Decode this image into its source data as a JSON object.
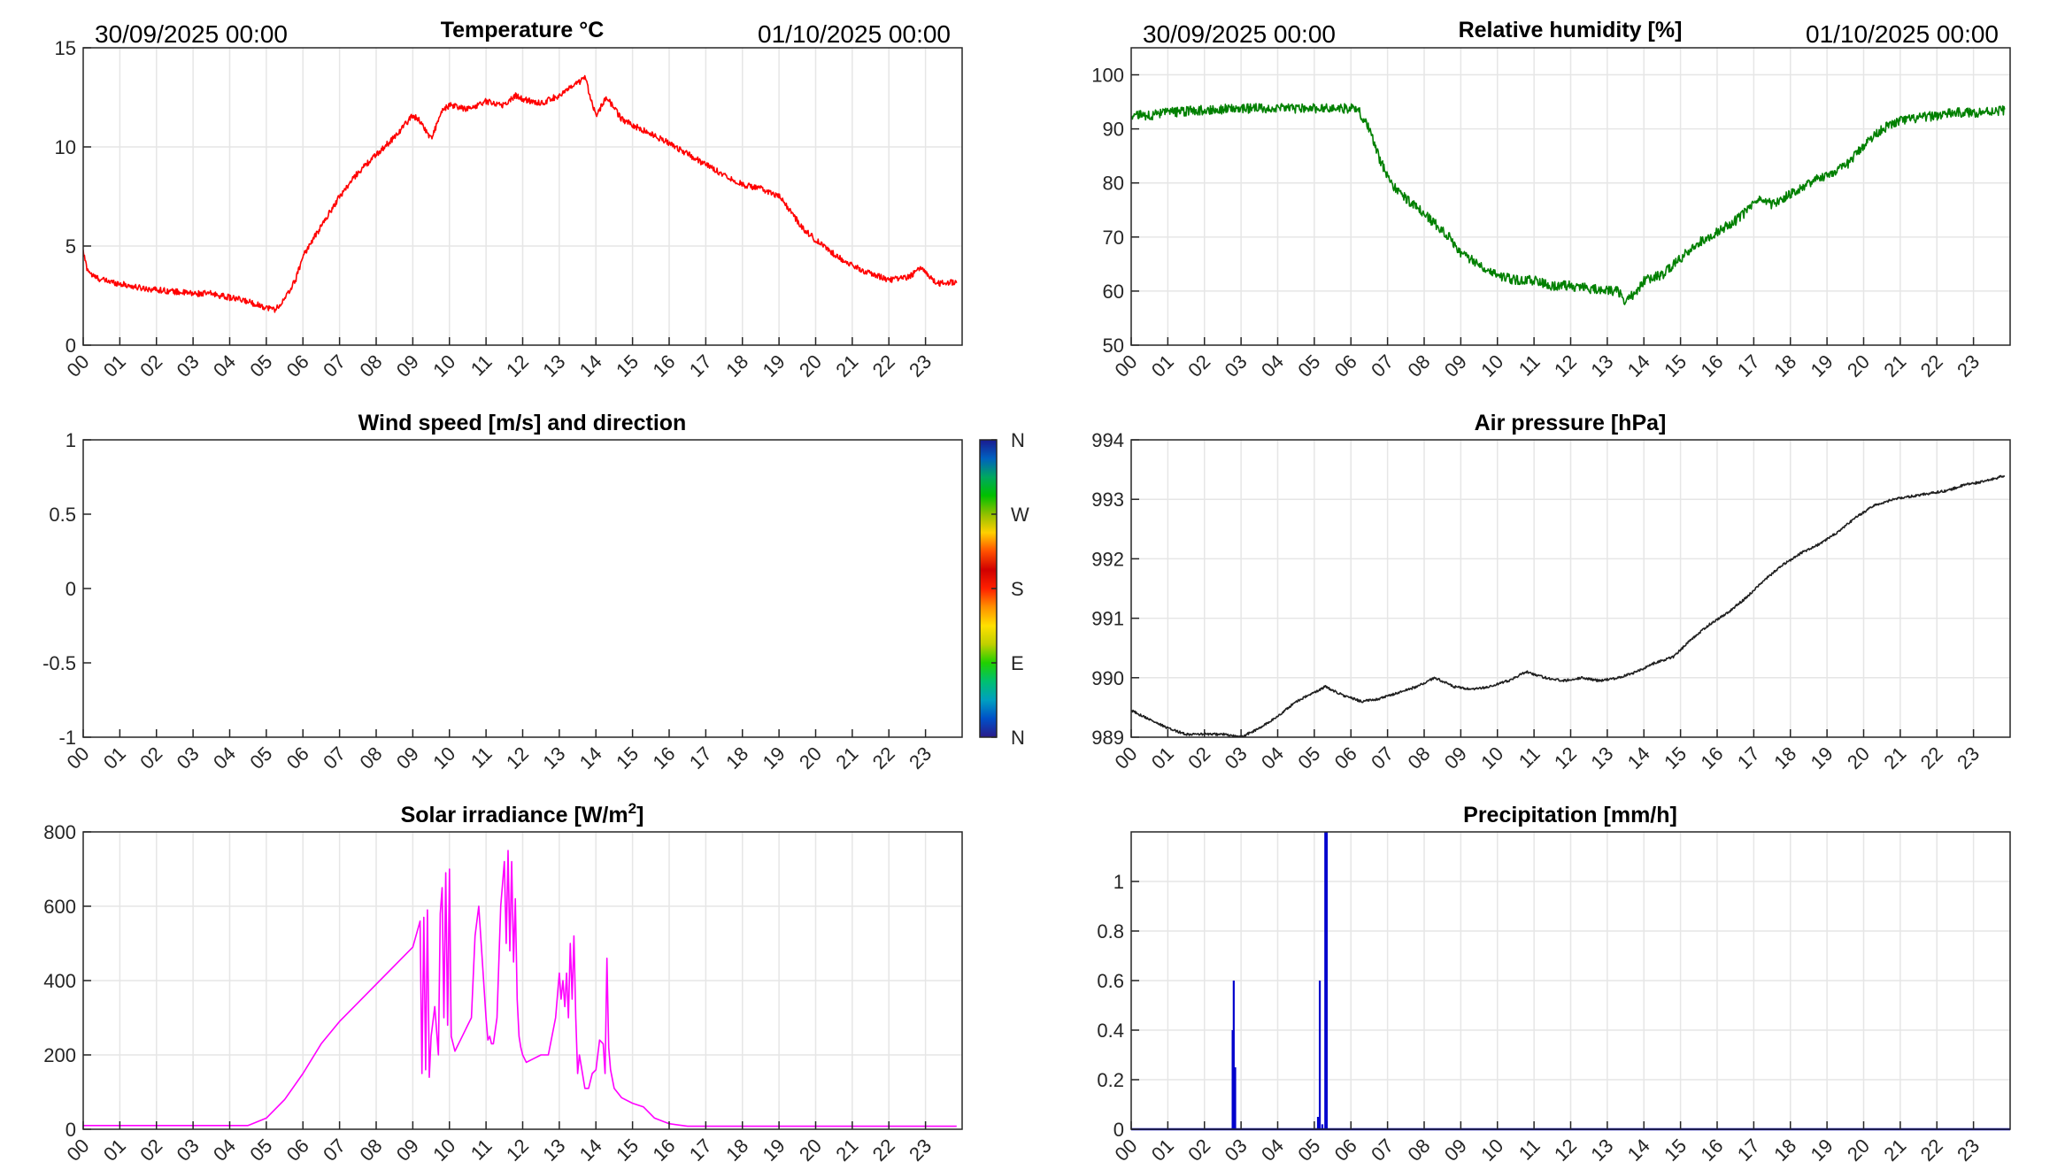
{
  "charts": [
    {
      "type": "line",
      "title": "Temperature °C",
      "start_label": "30/09/2025 00:00",
      "end_label": "01/10/2025 00:00",
      "x_tick_labels": [
        "00",
        "01",
        "02",
        "03",
        "04",
        "05",
        "06",
        "07",
        "08",
        "09",
        "10",
        "11",
        "12",
        "13",
        "14",
        "15",
        "16",
        "17",
        "18",
        "19",
        "20",
        "21",
        "22",
        "23"
      ],
      "xlim": [
        0,
        24
      ],
      "ylim": [
        0,
        15
      ],
      "y_ticks": [
        0,
        5,
        10,
        15
      ],
      "y_tick_labels": [
        "0",
        "5",
        "10",
        "15"
      ],
      "grid": true,
      "series": [
        {
          "color": "#ff0000",
          "noise": 0.15,
          "x": [
            0,
            0.1,
            0.25,
            0.5,
            1,
            1.5,
            2,
            2.5,
            3,
            3.5,
            4,
            4.5,
            5,
            5.25,
            5.5,
            5.8,
            6,
            6.5,
            7,
            7.5,
            8,
            8.5,
            9,
            9.2,
            9.5,
            9.8,
            10,
            10.5,
            11,
            11.5,
            11.8,
            12,
            12.5,
            13,
            13.5,
            13.7,
            14,
            14.3,
            14.7,
            15,
            16,
            17,
            18,
            18.5,
            19,
            19.3,
            19.6,
            20,
            20.5,
            21,
            21.5,
            22,
            22.5,
            22.9,
            23.3,
            23.85
          ],
          "y": [
            4.7,
            3.9,
            3.5,
            3.3,
            3.1,
            2.9,
            2.8,
            2.7,
            2.6,
            2.6,
            2.4,
            2.2,
            1.9,
            1.8,
            2.3,
            3.3,
            4.5,
            6.0,
            7.5,
            8.7,
            9.6,
            10.5,
            11.6,
            11.3,
            10.4,
            11.8,
            12.1,
            11.9,
            12.3,
            12.1,
            12.6,
            12.4,
            12.2,
            12.6,
            13.2,
            13.5,
            11.6,
            12.5,
            11.4,
            11.1,
            10.2,
            9.1,
            8.1,
            7.9,
            7.5,
            6.8,
            6.0,
            5.3,
            4.6,
            4.0,
            3.6,
            3.3,
            3.4,
            3.9,
            3.1,
            3.2
          ]
        }
      ],
      "annotations": []
    },
    {
      "type": "line",
      "title": "Relative humidity [%]",
      "start_label": "30/09/2025 00:00",
      "end_label": "01/10/2025 00:00",
      "x_tick_labels": [
        "00",
        "01",
        "02",
        "03",
        "04",
        "05",
        "06",
        "07",
        "08",
        "09",
        "10",
        "11",
        "12",
        "13",
        "14",
        "15",
        "16",
        "17",
        "18",
        "19",
        "20",
        "21",
        "22",
        "23"
      ],
      "xlim": [
        0,
        24
      ],
      "ylim": [
        50,
        105
      ],
      "y_ticks": [
        50,
        60,
        70,
        80,
        90,
        100
      ],
      "y_tick_labels": [
        "50",
        "60",
        "70",
        "80",
        "90",
        "100"
      ],
      "grid": true,
      "series": [
        {
          "color": "#008000",
          "noise": 0.9,
          "x": [
            0,
            0.5,
            1,
            2,
            3,
            4,
            5,
            6,
            6.2,
            6.5,
            6.8,
            7.2,
            7.7,
            8.2,
            8.7,
            9,
            9.5,
            10,
            10.5,
            11,
            11.5,
            12,
            12.5,
            13,
            13.3,
            13.5,
            13.8,
            14,
            14.5,
            15,
            15.5,
            16,
            16.5,
            17,
            17.2,
            17.5,
            18,
            18.5,
            19,
            19.5,
            20,
            20.5,
            21,
            21.5,
            22,
            22.5,
            23,
            23.85
          ],
          "y": [
            92.5,
            92.5,
            93,
            93.5,
            93.8,
            93.8,
            93.8,
            93.8,
            93.5,
            90,
            84,
            79,
            76,
            73,
            70,
            67,
            65,
            63,
            62,
            62,
            61,
            61,
            60.5,
            60,
            60,
            58,
            60,
            62,
            63,
            66,
            69,
            71,
            73,
            76,
            77,
            76,
            78,
            80,
            81.5,
            83,
            87,
            90,
            91.5,
            92,
            92.5,
            93,
            93,
            93.5
          ]
        }
      ],
      "annotations": []
    },
    {
      "type": "line",
      "title": "Wind speed [m/s] and direction",
      "start_label": "",
      "end_label": "",
      "x_tick_labels": [
        "00",
        "01",
        "02",
        "03",
        "04",
        "05",
        "06",
        "07",
        "08",
        "09",
        "10",
        "11",
        "12",
        "13",
        "14",
        "15",
        "16",
        "17",
        "18",
        "19",
        "20",
        "21",
        "22",
        "23"
      ],
      "xlim": [
        0,
        24
      ],
      "ylim": [
        -1,
        1
      ],
      "y_ticks": [
        -1,
        -0.5,
        0,
        0.5,
        1
      ],
      "y_tick_labels": [
        "-1",
        "-0.5",
        "0",
        "0.5",
        "1"
      ],
      "grid": false,
      "series": [],
      "colorbar": {
        "labels": [
          "N",
          "W",
          "S",
          "E",
          "N"
        ],
        "colors": [
          "#2a1a8a",
          "#0050c8",
          "#00a0c0",
          "#00c070",
          "#20d000",
          "#c0d000",
          "#ffe000",
          "#ff9000",
          "#ff2000",
          "#d00000",
          "#ff5000",
          "#ffd000",
          "#90c000",
          "#00c000",
          "#00a860",
          "#0060c0",
          "#1a1a90"
        ]
      },
      "annotations": []
    },
    {
      "type": "line",
      "title": "Air pressure [hPa]",
      "start_label": "",
      "end_label": "",
      "x_tick_labels": [
        "00",
        "01",
        "02",
        "03",
        "04",
        "05",
        "06",
        "07",
        "08",
        "09",
        "10",
        "11",
        "12",
        "13",
        "14",
        "15",
        "16",
        "17",
        "18",
        "19",
        "20",
        "21",
        "22",
        "23"
      ],
      "xlim": [
        0,
        24
      ],
      "ylim": [
        989,
        994
      ],
      "y_ticks": [
        989,
        990,
        991,
        992,
        993,
        994
      ],
      "y_tick_labels": [
        "989",
        "990",
        "991",
        "992",
        "993",
        "994"
      ],
      "grid": true,
      "series": [
        {
          "color": "#202020",
          "noise": 0.02,
          "x": [
            0,
            0.5,
            1,
            1.5,
            2,
            2.5,
            3,
            3.5,
            4,
            4.5,
            5,
            5.3,
            5.8,
            6.3,
            6.8,
            7.3,
            7.8,
            8.3,
            8.8,
            9.3,
            9.8,
            10.3,
            10.8,
            11.3,
            11.8,
            12.3,
            12.8,
            13.3,
            13.8,
            14.3,
            14.8,
            15.3,
            15.8,
            16.3,
            16.8,
            17.3,
            17.8,
            18.3,
            18.8,
            19.3,
            19.8,
            20.3,
            20.8,
            21.3,
            21.8,
            22.3,
            22.8,
            23.3,
            23.85
          ],
          "y": [
            989.45,
            989.3,
            989.15,
            989.05,
            989.05,
            989.05,
            989.0,
            989.15,
            989.35,
            989.6,
            989.75,
            989.85,
            989.7,
            989.6,
            989.65,
            989.75,
            989.85,
            990.0,
            989.85,
            989.8,
            989.85,
            989.95,
            990.1,
            990.0,
            989.95,
            990.0,
            989.95,
            990.0,
            990.1,
            990.25,
            990.35,
            990.65,
            990.9,
            991.1,
            991.35,
            991.65,
            991.9,
            992.1,
            992.25,
            992.45,
            992.7,
            992.9,
            993.0,
            993.05,
            993.1,
            993.15,
            993.25,
            993.3,
            993.4
          ]
        }
      ],
      "annotations": []
    },
    {
      "type": "line",
      "title": "Solar irradiance [W/m",
      "title_sup": "2",
      "title_suffix": "]",
      "start_label": "",
      "end_label": "",
      "x_tick_labels": [
        "00",
        "01",
        "02",
        "03",
        "04",
        "05",
        "06",
        "07",
        "08",
        "09",
        "10",
        "11",
        "12",
        "13",
        "14",
        "15",
        "16",
        "17",
        "18",
        "19",
        "20",
        "21",
        "22",
        "23"
      ],
      "xlim": [
        0,
        24
      ],
      "ylim": [
        0,
        800
      ],
      "y_ticks": [
        0,
        200,
        400,
        600,
        800
      ],
      "y_tick_labels": [
        "0",
        "200",
        "400",
        "600",
        "800"
      ],
      "grid": true,
      "series": [
        {
          "color": "#ff00ff",
          "noise": 0,
          "x": [
            0,
            4.5,
            5,
            5.5,
            6,
            6.5,
            7,
            7.5,
            8,
            8.5,
            9,
            9.2,
            9.25,
            9.3,
            9.35,
            9.4,
            9.45,
            9.5,
            9.6,
            9.7,
            9.75,
            9.8,
            9.85,
            9.9,
            9.95,
            10.0,
            10.05,
            10.1,
            10.15,
            10.2,
            10.3,
            10.4,
            10.5,
            10.6,
            10.7,
            10.8,
            10.9,
            11.0,
            11.05,
            11.1,
            11.15,
            11.2,
            11.3,
            11.4,
            11.5,
            11.55,
            11.6,
            11.65,
            11.7,
            11.75,
            11.8,
            11.85,
            11.9,
            11.95,
            12.0,
            12.1,
            12.3,
            12.5,
            12.7,
            12.9,
            13.0,
            13.05,
            13.1,
            13.15,
            13.2,
            13.25,
            13.3,
            13.35,
            13.4,
            13.45,
            13.5,
            13.55,
            13.6,
            13.7,
            13.8,
            13.9,
            14.0,
            14.1,
            14.2,
            14.25,
            14.3,
            14.35,
            14.4,
            14.5,
            14.7,
            15.0,
            15.3,
            15.6,
            16.0,
            16.5,
            17,
            23.85
          ],
          "y": [
            10,
            10,
            30,
            80,
            150,
            230,
            290,
            340,
            390,
            440,
            490,
            560,
            150,
            570,
            160,
            590,
            140,
            250,
            330,
            200,
            580,
            650,
            300,
            690,
            280,
            700,
            250,
            230,
            210,
            220,
            240,
            260,
            280,
            300,
            520,
            600,
            450,
            300,
            240,
            250,
            230,
            230,
            300,
            600,
            720,
            500,
            750,
            480,
            720,
            450,
            620,
            350,
            250,
            220,
            200,
            180,
            190,
            200,
            200,
            300,
            420,
            350,
            400,
            330,
            420,
            300,
            500,
            350,
            520,
            300,
            150,
            200,
            170,
            110,
            110,
            150,
            160,
            240,
            230,
            150,
            460,
            220,
            160,
            110,
            85,
            70,
            60,
            30,
            15,
            8,
            8,
            8
          ]
        }
      ],
      "annotations": []
    },
    {
      "type": "bar",
      "title": "Precipitation [mm/h]",
      "start_label": "",
      "end_label": "",
      "x_tick_labels": [
        "00",
        "01",
        "02",
        "03",
        "04",
        "05",
        "06",
        "07",
        "08",
        "09",
        "10",
        "11",
        "12",
        "13",
        "14",
        "15",
        "16",
        "17",
        "18",
        "19",
        "20",
        "21",
        "22",
        "23"
      ],
      "xlim": [
        0,
        24
      ],
      "ylim": [
        0,
        1.2
      ],
      "y_ticks": [
        0,
        0.2,
        0.4,
        0.6,
        0.8,
        1
      ],
      "y_tick_labels": [
        "0",
        "0.2",
        "0.4",
        "0.6",
        "0.8",
        "1"
      ],
      "grid": true,
      "series": [
        {
          "color": "#0000cd",
          "noise": 0,
          "spikes": [
            [
              2.77,
              0.4
            ],
            [
              2.8,
              0.6
            ],
            [
              2.84,
              0.25
            ],
            [
              5.1,
              0.05
            ],
            [
              5.15,
              0.6
            ],
            [
              5.22,
              0.02
            ],
            [
              5.3,
              1.2
            ],
            [
              5.34,
              1.2
            ]
          ]
        }
      ],
      "annotations": []
    }
  ]
}
